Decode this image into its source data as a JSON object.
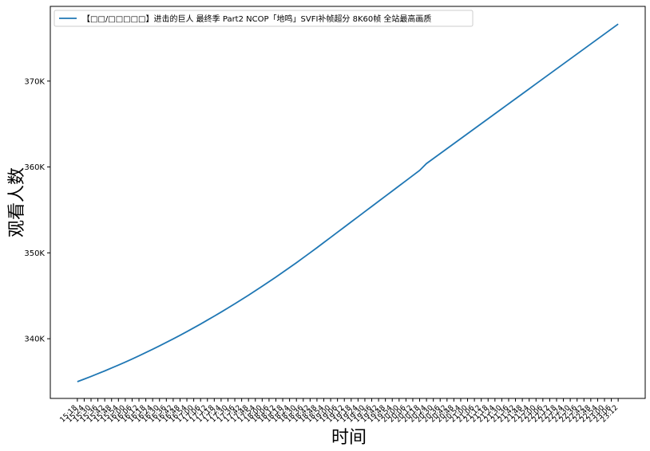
{
  "chart_data": {
    "type": "line",
    "legend_label": "【□□/□□□□□】进击的巨人 最终季 Part2 NCOP「地鸣」SVFI补帧超分 8K60帧 全站最高画质",
    "xlabel": "时间",
    "ylabel": "观看人数",
    "color": "#1f77b4",
    "legend": "upper left",
    "categories": [
      "15:18",
      "15:24",
      "15:30",
      "15:36",
      "15:42",
      "15:48",
      "15:54",
      "16:00",
      "16:06",
      "16:12",
      "16:18",
      "16:24",
      "16:30",
      "16:36",
      "16:42",
      "16:48",
      "16:54",
      "17:00",
      "17:06",
      "17:12",
      "17:18",
      "17:24",
      "17:30",
      "17:36",
      "17:42",
      "17:48",
      "17:54",
      "18:00",
      "18:06",
      "18:12",
      "18:18",
      "18:24",
      "18:30",
      "18:36",
      "18:42",
      "18:48",
      "18:54",
      "19:00",
      "19:06",
      "19:12",
      "19:18",
      "19:24",
      "19:30",
      "19:36",
      "19:42",
      "19:48",
      "19:54",
      "20:00",
      "20:06",
      "20:12",
      "20:18",
      "20:24",
      "20:30",
      "20:36",
      "20:42",
      "20:48",
      "20:54",
      "21:00",
      "21:06",
      "21:12",
      "21:18",
      "21:24",
      "21:30",
      "21:36",
      "21:42",
      "21:48",
      "21:54",
      "22:00",
      "22:06",
      "22:12",
      "22:18",
      "22:24",
      "22:30",
      "22:36",
      "22:42",
      "22:48",
      "22:54",
      "23:00",
      "23:06",
      "23:12"
    ],
    "values": [
      335000,
      335300,
      335610,
      335930,
      336250,
      336590,
      336930,
      337280,
      337640,
      338010,
      338390,
      338770,
      339170,
      339570,
      339980,
      340400,
      340830,
      341270,
      341710,
      342170,
      342630,
      343100,
      343580,
      344070,
      344570,
      345070,
      345590,
      346110,
      346640,
      347180,
      347730,
      348290,
      348850,
      349430,
      350010,
      350600,
      351200,
      351800,
      352400,
      353000,
      353600,
      354200,
      354800,
      355400,
      356000,
      356600,
      357200,
      357800,
      358400,
      359000,
      359600,
      360400,
      360980,
      361560,
      362140,
      362720,
      363300,
      363880,
      364460,
      365040,
      365620,
      366200,
      366780,
      367360,
      367940,
      368520,
      369100,
      369680,
      370260,
      370840,
      371420,
      372000,
      372580,
      373160,
      373740,
      374320,
      374900,
      375480,
      376060,
      376640
    ],
    "ylim": [
      333050,
      378700
    ],
    "yticks": [
      {
        "value": 340000,
        "label": "340K"
      },
      {
        "value": 350000,
        "label": "350K"
      },
      {
        "value": 360000,
        "label": "360K"
      },
      {
        "value": 370000,
        "label": "370K"
      }
    ]
  }
}
